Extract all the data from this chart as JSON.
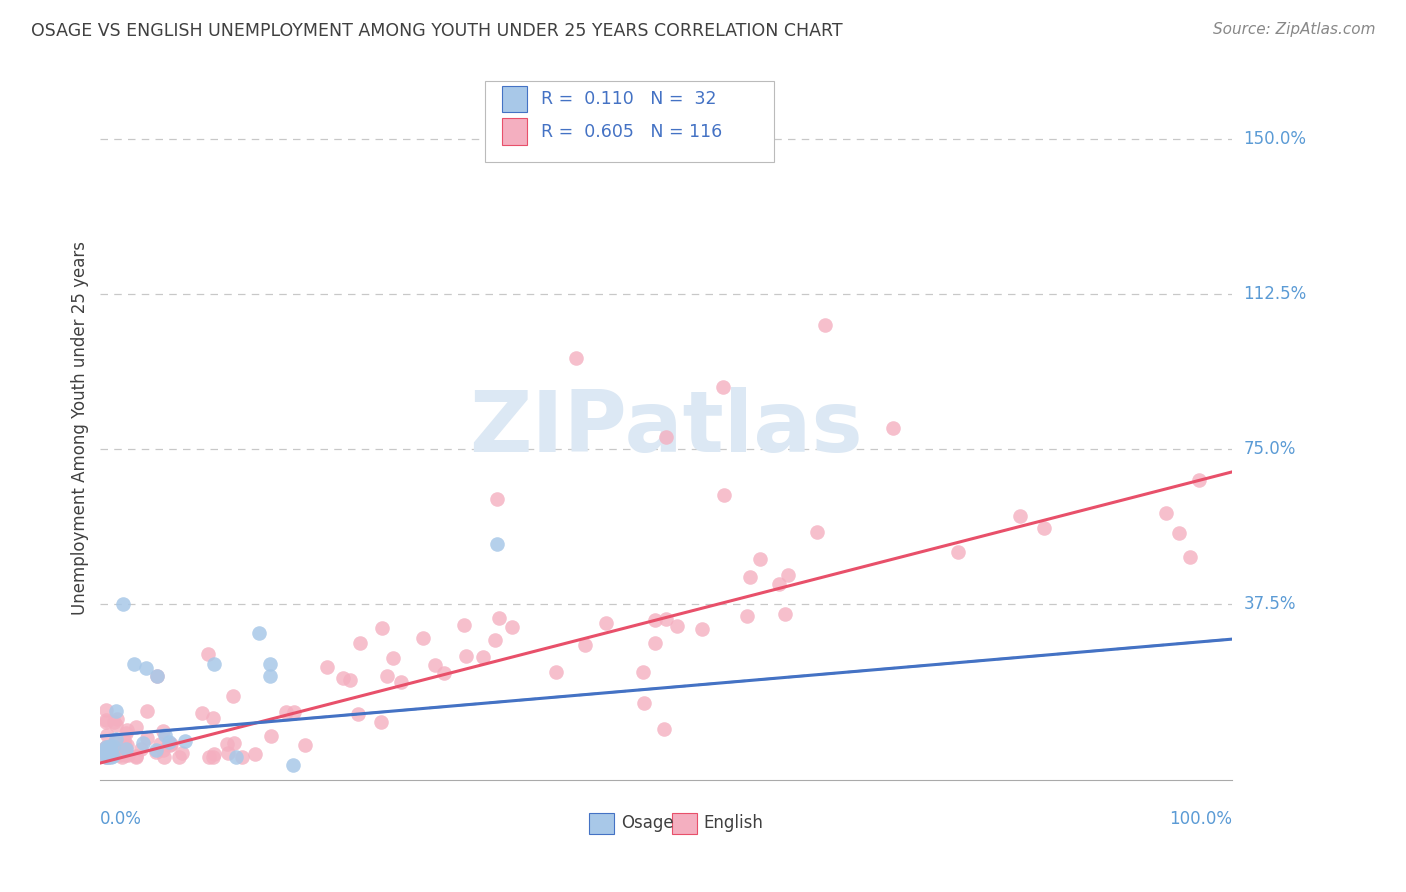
{
  "title": "OSAGE VS ENGLISH UNEMPLOYMENT AMONG YOUTH UNDER 25 YEARS CORRELATION CHART",
  "source": "Source: ZipAtlas.com",
  "ylabel": "Unemployment Among Youth under 25 years",
  "ytick_labels": [
    "150.0%",
    "112.5%",
    "75.0%",
    "37.5%"
  ],
  "ytick_values": [
    1.5,
    1.125,
    0.75,
    0.375
  ],
  "xlim": [
    0.0,
    1.0
  ],
  "ylim": [
    -0.05,
    1.65
  ],
  "osage_color": "#a8c8e8",
  "english_color": "#f4afc0",
  "osage_line_color": "#4472c4",
  "english_line_color": "#e8506a",
  "background_color": "#ffffff",
  "grid_color": "#c8c8c8",
  "watermark_color": "#dce8f4",
  "axis_label_color": "#5b9bd5",
  "text_color": "#404040",
  "source_color": "#888888",
  "legend_border_color": "#bbbbbb",
  "legend_text_color": "#4472c4",
  "osage_line_start_y": 0.055,
  "osage_line_end_y": 0.29,
  "english_line_start_y": -0.01,
  "english_line_end_y": 0.695
}
